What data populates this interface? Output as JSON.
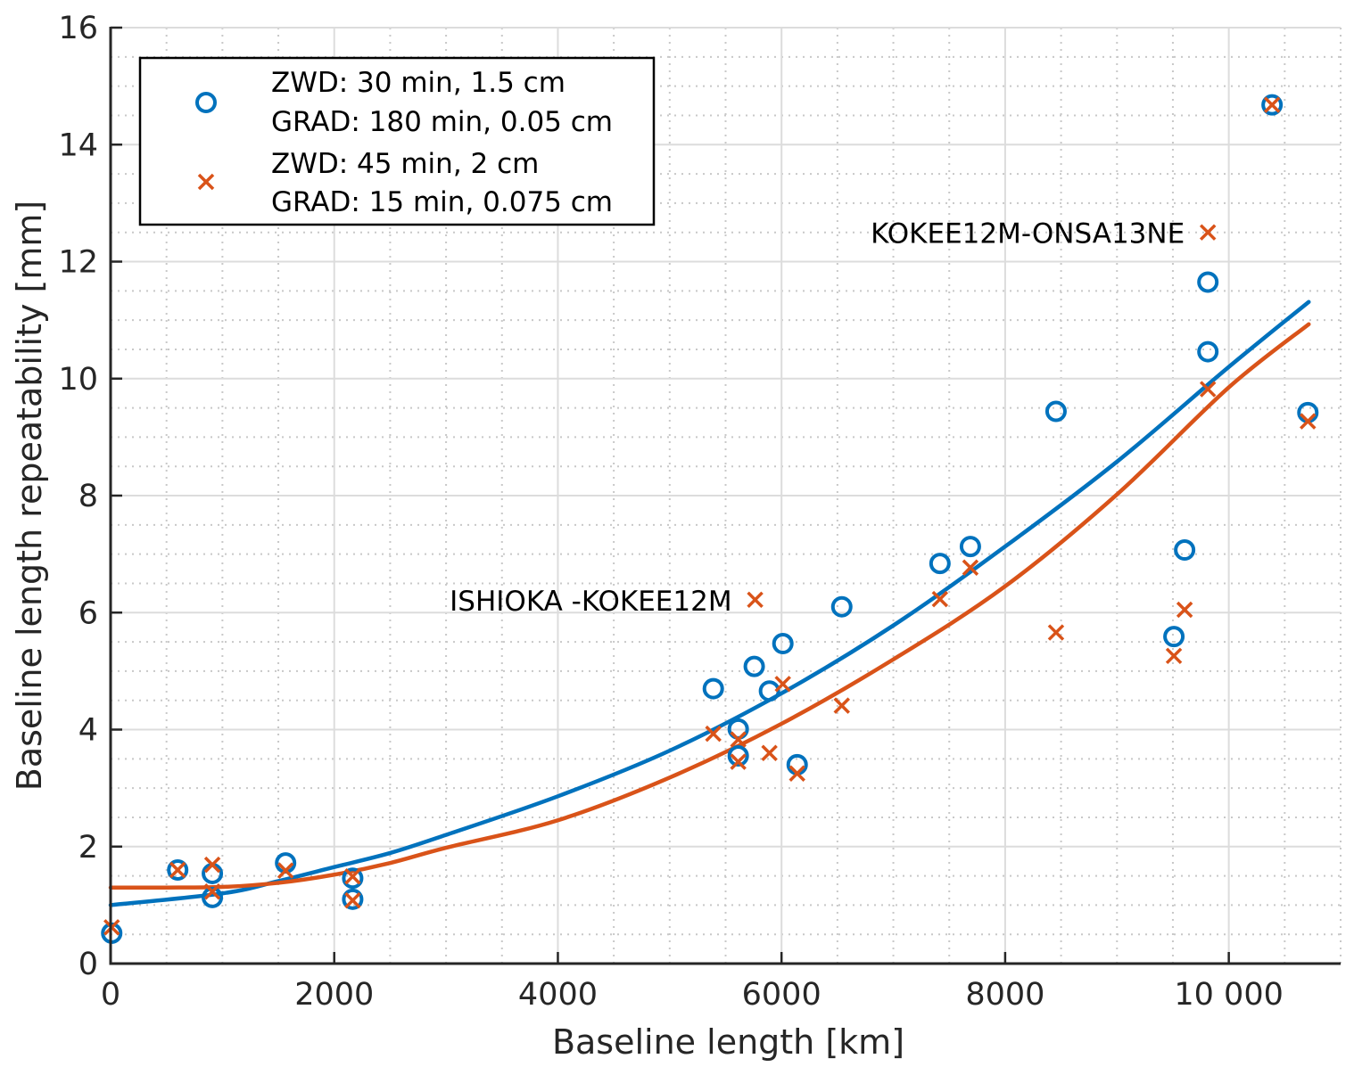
{
  "chart_data": {
    "type": "scatter",
    "title": "",
    "xlabel": "Baseline length [km]",
    "ylabel": "Baseline length repeatability [mm]",
    "xlim": [
      0,
      11000
    ],
    "ylim": [
      0,
      16
    ],
    "xticks": [
      0,
      2000,
      4000,
      6000,
      8000,
      10000
    ],
    "xtick_labels": [
      "0",
      "2000",
      "4000",
      "6000",
      "8000",
      "10 000"
    ],
    "yticks": [
      0,
      2,
      4,
      6,
      8,
      10,
      12,
      14,
      16
    ],
    "ytick_labels": [
      "0",
      "2",
      "4",
      "6",
      "8",
      "10",
      "12",
      "14",
      "16"
    ],
    "x_minor_step": 500,
    "y_minor_step": 0.5,
    "grid": "major and minor",
    "legend_position": "top-left",
    "series": [
      {
        "name": "ZWD: 30 min, 1.5 cm / GRAD: 180 min, 0.05 cm",
        "legend_lines": [
          "ZWD: 30 min, 1.5 cm",
          "GRAD: 180 min, 0.05 cm"
        ],
        "marker": "circle",
        "color": "#0072BD",
        "points": [
          [
            10,
            0.52
          ],
          [
            600,
            1.6
          ],
          [
            910,
            1.54
          ],
          [
            910,
            1.13
          ],
          [
            1565,
            1.72
          ],
          [
            2165,
            1.46
          ],
          [
            2165,
            1.1
          ],
          [
            5390,
            4.7
          ],
          [
            5613,
            4.01
          ],
          [
            5613,
            3.55
          ],
          [
            5756,
            5.08
          ],
          [
            5892,
            4.66
          ],
          [
            6012,
            5.47
          ],
          [
            6140,
            3.4
          ],
          [
            6539,
            6.1
          ],
          [
            7417,
            6.84
          ],
          [
            7689,
            7.13
          ],
          [
            8455,
            9.44
          ],
          [
            9509,
            5.59
          ],
          [
            9605,
            7.07
          ],
          [
            9813,
            11.65
          ],
          [
            9813,
            10.46
          ],
          [
            10387,
            14.68
          ],
          [
            10707,
            9.42
          ]
        ],
        "fit_curve": [
          [
            0,
            1.0
          ],
          [
            1000,
            1.2
          ],
          [
            1500,
            1.41
          ],
          [
            2000,
            1.65
          ],
          [
            2500,
            1.89
          ],
          [
            3000,
            2.2
          ],
          [
            4000,
            2.86
          ],
          [
            5000,
            3.64
          ],
          [
            6000,
            4.62
          ],
          [
            7000,
            5.78
          ],
          [
            8000,
            7.13
          ],
          [
            9000,
            8.58
          ],
          [
            10000,
            10.2
          ],
          [
            10715,
            11.31
          ]
        ]
      },
      {
        "name": "ZWD: 45 min, 2 cm / GRAD: 15 min, 0.075 cm",
        "legend_lines": [
          "ZWD: 45 min, 2 cm",
          "GRAD: 15 min, 0.075 cm"
        ],
        "marker": "x",
        "color": "#D95319",
        "points": [
          [
            10,
            0.62
          ],
          [
            600,
            1.6
          ],
          [
            910,
            1.69
          ],
          [
            910,
            1.23
          ],
          [
            1565,
            1.59
          ],
          [
            2165,
            1.49
          ],
          [
            2165,
            1.08
          ],
          [
            5390,
            3.93
          ],
          [
            5613,
            3.83
          ],
          [
            5613,
            3.45
          ],
          [
            5764,
            6.22
          ],
          [
            5892,
            3.6
          ],
          [
            6012,
            4.78
          ],
          [
            6140,
            3.25
          ],
          [
            6539,
            4.41
          ],
          [
            7417,
            6.23
          ],
          [
            7689,
            6.77
          ],
          [
            8455,
            5.66
          ],
          [
            9509,
            5.26
          ],
          [
            9605,
            6.05
          ],
          [
            9813,
            12.5
          ],
          [
            9813,
            9.82
          ],
          [
            10387,
            14.68
          ],
          [
            10707,
            9.27
          ]
        ],
        "fit_curve": [
          [
            0,
            1.3
          ],
          [
            500,
            1.3
          ],
          [
            1000,
            1.31
          ],
          [
            1500,
            1.38
          ],
          [
            2000,
            1.52
          ],
          [
            2500,
            1.72
          ],
          [
            3000,
            1.98
          ],
          [
            4000,
            2.45
          ],
          [
            5000,
            3.18
          ],
          [
            6000,
            4.1
          ],
          [
            7000,
            5.2
          ],
          [
            8000,
            6.45
          ],
          [
            9000,
            8.02
          ],
          [
            10000,
            9.85
          ],
          [
            10715,
            10.93
          ]
        ]
      }
    ],
    "annotations": [
      {
        "text": "ISHIOKA -KOKEE12M",
        "x": 5764,
        "y": 6.22
      },
      {
        "text": "KOKEE12M-ONSA13NE",
        "x": 9813,
        "y": 12.5
      }
    ]
  }
}
